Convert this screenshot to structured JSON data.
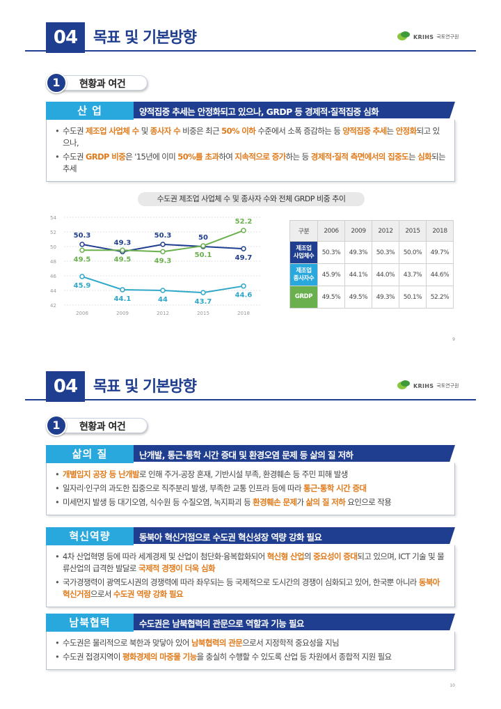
{
  "page1": {
    "chapter_number": "04",
    "chapter_title": "목표 및 기본방향",
    "logo_en": "KRIHS",
    "logo_kr": "국토연구원",
    "section_number": "1",
    "section_title": "현황과 여건",
    "topic": {
      "tab": "산 업",
      "title": "양적집중 추세는 안정화되고 있으나, GRDP 등 경제적·질적집중 심화",
      "bullets": [
        [
          {
            "t": "수도권 "
          },
          {
            "t": "제조업 사업체 수",
            "hl": true
          },
          {
            "t": " 및 "
          },
          {
            "t": "종사자 수",
            "hl": true
          },
          {
            "t": " 비중은 최근 "
          },
          {
            "t": "50% 이하",
            "hl": true
          },
          {
            "t": " 수준에서 소폭 증감하는 등 "
          },
          {
            "t": "양적집중 추세",
            "hl": true
          },
          {
            "t": "는 "
          },
          {
            "t": "안정화",
            "hl": true
          },
          {
            "t": "되고 있으나,"
          }
        ],
        [
          {
            "t": "수도권 "
          },
          {
            "t": "GRDP 비중",
            "hl": true
          },
          {
            "t": "은 '15년에 이미 "
          },
          {
            "t": "50%를 초과",
            "hl": true
          },
          {
            "t": "하여 "
          },
          {
            "t": "지속적으로 증가",
            "hl": true
          },
          {
            "t": "하는 등 "
          },
          {
            "t": "경제적·질적 측면에서의 집중도",
            "hl": true
          },
          {
            "t": "는 "
          },
          {
            "t": "심화",
            "hl": true
          },
          {
            "t": "되는 추세"
          }
        ]
      ]
    },
    "chart_caption": "수도권 제조업 사업체 수 및 종사자 수와 전체 GRDP 비중 추이",
    "page_number": "9"
  },
  "chart_data": {
    "type": "line",
    "x": [
      "2006",
      "2009",
      "2012",
      "2015",
      "2018"
    ],
    "ylim": [
      42,
      54
    ],
    "y_ticks": [
      "54",
      "52",
      "50",
      "48",
      "46",
      "44",
      "42"
    ],
    "grid": true,
    "series": [
      {
        "values": [
          50.3,
          49.3,
          50.3,
          50.0,
          49.7
        ],
        "labels": [
          "50.3",
          "49.3",
          "50.3",
          "50",
          "49.7"
        ],
        "color": "#1f3e8f"
      },
      {
        "values": [
          49.5,
          49.5,
          49.3,
          50.1,
          52.2
        ],
        "labels": [
          "49.5",
          "49.5",
          "49.3",
          "50.1",
          "52.2"
        ],
        "color": "#6ab04c"
      },
      {
        "values": [
          45.9,
          44.1,
          44.0,
          43.7,
          44.6
        ],
        "labels": [
          "45.9",
          "44.1",
          "44",
          "43.7",
          "44.6"
        ],
        "color": "#2ea7c9"
      }
    ]
  },
  "table": {
    "header": [
      "구분",
      "2006",
      "2009",
      "2012",
      "2015",
      "2018"
    ],
    "rows": [
      {
        "label": "제조업\n사업체수",
        "color": "#1f3e8f",
        "cells": [
          "50.3%",
          "49.3%",
          "50.3%",
          "50.0%",
          "49.7%"
        ]
      },
      {
        "label": "제조업\n종사자수",
        "color": "#29a8dd",
        "cells": [
          "45.9%",
          "44.1%",
          "44.0%",
          "43.7%",
          "44.6%"
        ]
      },
      {
        "label": "GRDP",
        "color": "#6ab04c",
        "cells": [
          "49.5%",
          "49.5%",
          "49.3%",
          "50.1%",
          "52.2%"
        ]
      }
    ]
  },
  "page2": {
    "chapter_number": "04",
    "chapter_title": "목표 및 기본방향",
    "logo_en": "KRIHS",
    "logo_kr": "국토연구원",
    "section_number": "1",
    "section_title": "현황과 여건",
    "topics": [
      {
        "tab": "삶의 질",
        "title": "난개발, 통근·통학 시간 증대 및 환경오염 문제 등 삶의 질 저하",
        "bullets": [
          [
            {
              "t": "개별입지 공장 등 난개발",
              "hl": true
            },
            {
              "t": "로 인해 주거-공장 혼재, 기반시설 부족, 환경훼손 등 주민 피해 발생"
            }
          ],
          [
            {
              "t": "일자리·인구의 과도한 집중으로 직주분리 발생, 부족한 교통 인프라 등에 따라 "
            },
            {
              "t": "통근·통학 시간 증대",
              "hl": true
            }
          ],
          [
            {
              "t": "미세먼지 발생 등 대기오염, 식수원 등 수질오염, 녹지파괴 등 "
            },
            {
              "t": "환경훼손 문제",
              "hl": true
            },
            {
              "t": "가 "
            },
            {
              "t": "삶의 질 저하",
              "hl": true
            },
            {
              "t": " 요인으로 작용"
            }
          ]
        ]
      },
      {
        "tab": "혁신역량",
        "title": "동북아 혁신거점으로 수도권 혁신성장 역량 강화 필요",
        "bullets": [
          [
            {
              "t": "4차 산업혁명 등에 따라 세계경제 및 산업이 첨단화·융복합화되어 "
            },
            {
              "t": "혁신형 산업",
              "hl": true
            },
            {
              "t": "의 "
            },
            {
              "t": "중요성이 증대",
              "hl": true
            },
            {
              "t": "되고 있으며, ICT 기술 및 물류산업의 급격한 발달로 "
            },
            {
              "t": "국제적 경쟁이 더욱 심화",
              "hl": true
            }
          ],
          [
            {
              "t": "국가경쟁력이 광역도시권의 경쟁력에 따라 좌우되는 등 국제적으로 도시간의 경쟁이 심화되고 있어, 한국뿐 아니라 "
            },
            {
              "t": "동북아 혁신거점",
              "hl": true
            },
            {
              "t": "으로서 "
            },
            {
              "t": "수도권 역량 강화 필요",
              "hl": true
            }
          ]
        ]
      },
      {
        "tab": "남북협력",
        "title": "수도권은 남북협력의 관문으로 역할과 기능 필요",
        "bullets": [
          [
            {
              "t": "수도권은 물리적으로 북한과 맞닿아 있어 "
            },
            {
              "t": "남북협력의 관문",
              "hl": true
            },
            {
              "t": "으로서 지정학적 중요성을 지님"
            }
          ],
          [
            {
              "t": "수도권 접경지역이 "
            },
            {
              "t": "평화경제의 마중물 기능",
              "hl": true
            },
            {
              "t": "을 충실히 수행할 수 있도록 산업 등 차원에서 종합적 지원 필요"
            }
          ]
        ]
      }
    ],
    "page_number": "10"
  }
}
